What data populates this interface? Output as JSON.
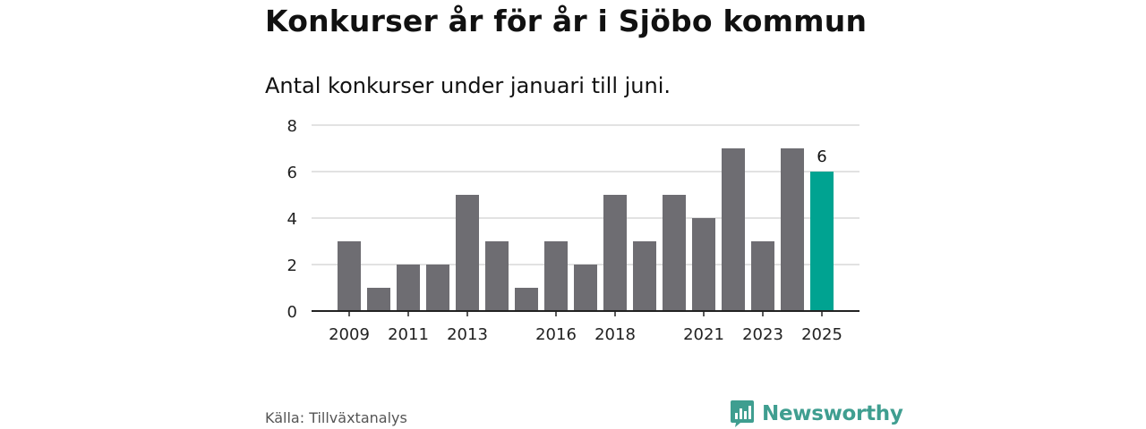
{
  "header": {
    "title": "Konkurser år för år i Sjöbo kommun",
    "subtitle": "Antal konkurser under januari till juni."
  },
  "footer": {
    "source": "Källa: Tillväxtanalys",
    "brand": "Newsworthy",
    "brand_icon": "bar-chart-icon"
  },
  "colors": {
    "bar": "#6e6d72",
    "highlight": "#00a391",
    "grid": "#d9d9d9",
    "axis": "#222222",
    "brand": "#3f9e90"
  },
  "chart_data": {
    "type": "bar",
    "categories": [
      "2009",
      "2010",
      "2011",
      "2012",
      "2013",
      "2014",
      "2015",
      "2016",
      "2017",
      "2018",
      "2019",
      "2020",
      "2021",
      "2022",
      "2023",
      "2024",
      "2025"
    ],
    "values": [
      3,
      1,
      2,
      2,
      5,
      3,
      1,
      3,
      2,
      5,
      3,
      5,
      4,
      7,
      3,
      7,
      6
    ],
    "x_tick_labels": [
      "2009",
      "2011",
      "2013",
      "2016",
      "2018",
      "2021",
      "2023",
      "2025"
    ],
    "y_ticks": [
      0,
      2,
      4,
      6,
      8
    ],
    "ylim": [
      0,
      8
    ],
    "highlight_category": "2025",
    "data_labels": [
      {
        "category": "2025",
        "text": "6"
      }
    ],
    "grid": true,
    "legend": "none"
  }
}
